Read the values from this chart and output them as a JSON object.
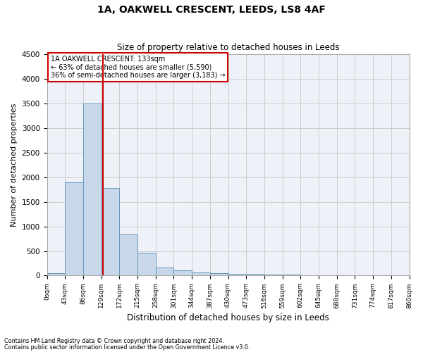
{
  "title1": "1A, OAKWELL CRESCENT, LEEDS, LS8 4AF",
  "title2": "Size of property relative to detached houses in Leeds",
  "xlabel": "Distribution of detached houses by size in Leeds",
  "ylabel": "Number of detached properties",
  "annotation_title": "1A OAKWELL CRESCENT: 133sqm",
  "annotation_line1": "← 63% of detached houses are smaller (5,590)",
  "annotation_line2": "36% of semi-detached houses are larger (3,183) →",
  "footer1": "Contains HM Land Registry data © Crown copyright and database right 2024.",
  "footer2": "Contains public sector information licensed under the Open Government Licence v3.0.",
  "property_size_sqm": 133,
  "bin_edges": [
    0,
    43,
    86,
    129,
    172,
    215,
    258,
    301,
    344,
    387,
    430,
    473,
    516,
    559,
    602,
    645,
    688,
    731,
    774,
    817,
    860
  ],
  "bar_heights": [
    50,
    1900,
    3500,
    1780,
    840,
    460,
    160,
    100,
    70,
    55,
    40,
    30,
    20,
    15,
    10,
    8,
    6,
    5,
    4,
    3
  ],
  "bar_color": "#c8d8ea",
  "bar_edge_color": "#6699bb",
  "vline_color": "#cc0000",
  "annotation_box_edgecolor": "#cc0000",
  "grid_color": "#cccccc",
  "bg_color": "#eef2f8",
  "ylim": [
    0,
    4500
  ],
  "yticks": [
    0,
    500,
    1000,
    1500,
    2000,
    2500,
    3000,
    3500,
    4000,
    4500
  ]
}
